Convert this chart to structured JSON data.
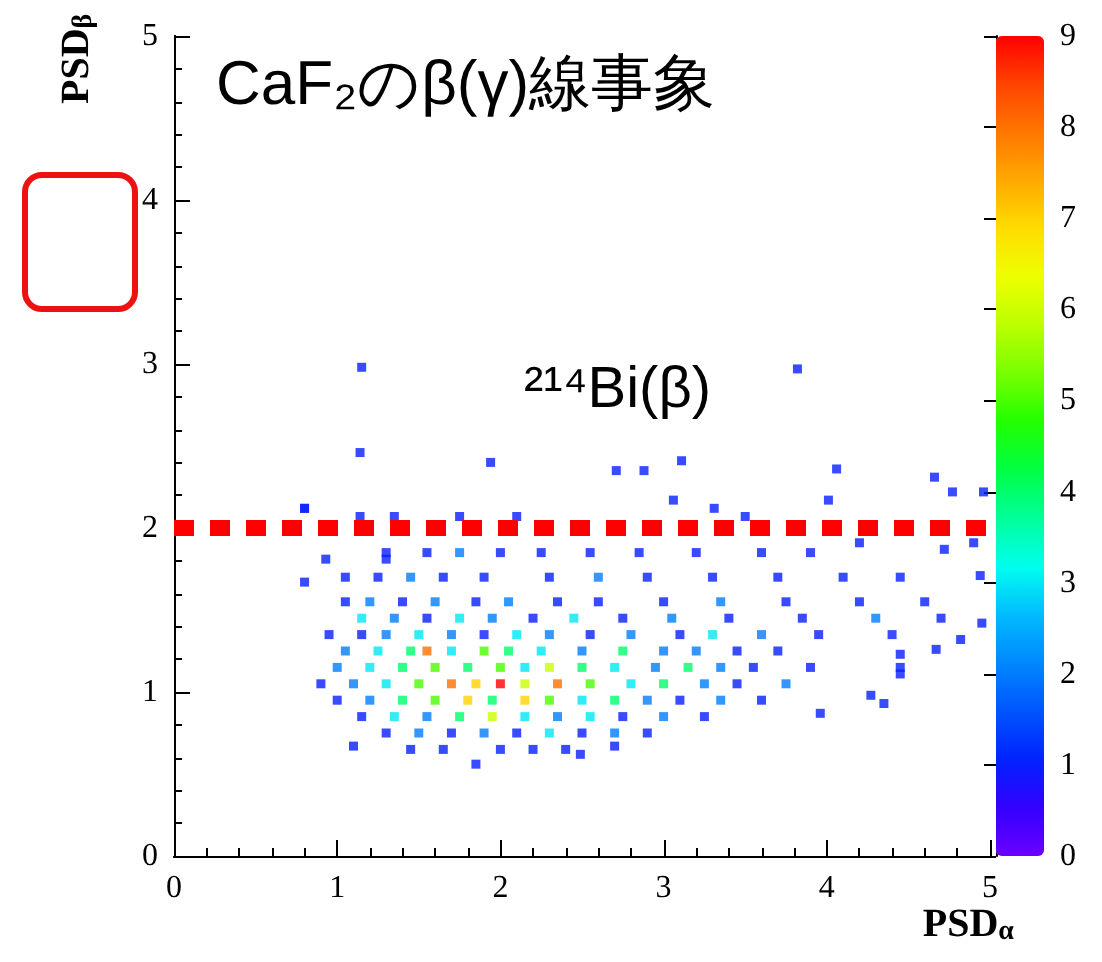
{
  "chart_data": {
    "type": "scatter",
    "title": "CaF₂のβ(γ)線事象",
    "xlabel": "PSD$_{α}$",
    "ylabel": "PSD$_{β}$",
    "annotations": [
      "²¹⁴Bi(β)"
    ],
    "marker": "square",
    "grid": false,
    "xlim": [
      0,
      5
    ],
    "xticks": [
      0,
      1,
      2,
      3,
      4,
      5
    ],
    "ylim": [
      0,
      5
    ],
    "yticks": [
      0,
      1,
      2,
      3,
      4,
      5
    ],
    "clim": [
      0,
      9
    ],
    "cticks": [
      0,
      1,
      2,
      3,
      4,
      5,
      6,
      7,
      8,
      9
    ],
    "ref_lines": [
      {
        "axis": "y",
        "value": 2,
        "label": null,
        "color": "#ff0000",
        "line_style": "dashed"
      }
    ],
    "x": [
      1.15,
      0.8,
      1.14,
      1.94,
      2.88,
      3.82,
      4.66,
      2.71,
      3.11,
      4.06,
      4.77,
      4.96,
      0.8,
      3.06,
      3.31,
      4.01,
      1.14,
      1.35,
      1.75,
      2.1,
      3.5,
      0.93,
      1.3,
      0.8,
      4.94,
      4.9,
      4.2,
      4.72,
      4.82,
      4.95,
      4.67,
      4.35,
      4.27,
      3.96,
      4.45,
      4.45,
      1.85,
      1.1,
      2.49,
      2.7,
      1.3,
      1.55,
      1.75,
      2.0,
      2.25,
      2.55,
      2.85,
      3.2,
      3.6,
      3.9,
      1.05,
      1.25,
      1.45,
      1.65,
      1.9,
      2.3,
      2.6,
      2.9,
      3.3,
      3.7,
      4.1,
      4.45,
      1.05,
      1.2,
      1.4,
      1.6,
      1.85,
      2.05,
      2.35,
      2.6,
      3.0,
      3.35,
      3.75,
      4.2,
      4.6,
      1.15,
      1.35,
      1.55,
      1.75,
      1.95,
      2.2,
      2.45,
      2.75,
      3.05,
      3.4,
      3.85,
      4.3,
      4.7,
      0.95,
      1.15,
      1.3,
      1.5,
      1.7,
      1.9,
      2.1,
      2.3,
      2.55,
      2.8,
      3.1,
      3.3,
      3.6,
      3.95,
      4.4,
      1.05,
      1.25,
      1.45,
      1.55,
      1.7,
      1.9,
      2.05,
      2.25,
      2.5,
      2.75,
      3.0,
      3.2,
      3.45,
      3.7,
      1.0,
      1.2,
      1.4,
      1.6,
      1.8,
      2.0,
      2.15,
      2.3,
      2.5,
      2.7,
      2.95,
      3.15,
      3.35,
      3.55,
      3.9,
      4.45,
      0.9,
      1.1,
      1.3,
      1.5,
      1.7,
      1.85,
      2.0,
      2.15,
      2.35,
      2.55,
      2.8,
      3.0,
      3.25,
      3.45,
      3.75,
      1.0,
      1.2,
      1.4,
      1.6,
      1.8,
      1.95,
      2.15,
      2.3,
      2.5,
      2.7,
      2.9,
      3.1,
      3.35,
      3.6,
      1.15,
      1.35,
      1.55,
      1.75,
      1.95,
      2.15,
      2.35,
      2.55,
      2.75,
      3.0,
      3.25,
      1.3,
      1.5,
      1.7,
      1.9,
      2.1,
      2.3,
      2.5,
      2.7,
      2.9,
      1.45,
      1.65,
      2.0,
      2.2,
      2.4
    ],
    "values": [
      2.98,
      2.12,
      2.46,
      2.4,
      2.35,
      2.97,
      2.31,
      2.35,
      2.41,
      2.36,
      2.22,
      2.22,
      2.12,
      2.17,
      2.12,
      2.17,
      2.07,
      2.07,
      2.07,
      2.07,
      2.07,
      1.81,
      1.81,
      1.67,
      1.71,
      1.91,
      1.91,
      1.87,
      1.32,
      1.42,
      1.26,
      0.93,
      0.98,
      0.87,
      1.11,
      1.23,
      0.56,
      0.67,
      0.62,
      0.67,
      1.85,
      1.85,
      1.85,
      1.85,
      1.85,
      1.85,
      1.85,
      1.85,
      1.85,
      1.85,
      1.7,
      1.7,
      1.7,
      1.7,
      1.7,
      1.7,
      1.7,
      1.7,
      1.7,
      1.7,
      1.7,
      1.7,
      1.55,
      1.55,
      1.55,
      1.55,
      1.55,
      1.55,
      1.55,
      1.55,
      1.55,
      1.55,
      1.55,
      1.55,
      1.55,
      1.45,
      1.45,
      1.45,
      1.45,
      1.45,
      1.45,
      1.45,
      1.45,
      1.45,
      1.45,
      1.45,
      1.45,
      1.45,
      1.35,
      1.35,
      1.35,
      1.35,
      1.35,
      1.35,
      1.35,
      1.35,
      1.35,
      1.35,
      1.35,
      1.35,
      1.35,
      1.35,
      1.35,
      1.25,
      1.25,
      1.25,
      1.25,
      1.25,
      1.25,
      1.25,
      1.25,
      1.25,
      1.25,
      1.25,
      1.25,
      1.25,
      1.25,
      1.15,
      1.15,
      1.15,
      1.15,
      1.15,
      1.15,
      1.15,
      1.15,
      1.15,
      1.15,
      1.15,
      1.15,
      1.15,
      1.15,
      1.15,
      1.15,
      1.05,
      1.05,
      1.05,
      1.05,
      1.05,
      1.05,
      1.05,
      1.05,
      1.05,
      1.05,
      1.05,
      1.05,
      1.05,
      1.05,
      1.05,
      0.95,
      0.95,
      0.95,
      0.95,
      0.95,
      0.95,
      0.95,
      0.95,
      0.95,
      0.95,
      0.95,
      0.95,
      0.95,
      0.95,
      0.85,
      0.85,
      0.85,
      0.85,
      0.85,
      0.85,
      0.85,
      0.85,
      0.85,
      0.85,
      0.85,
      0.75,
      0.75,
      0.75,
      0.75,
      0.75,
      0.75,
      0.75,
      0.75,
      0.75,
      0.65,
      0.65,
      0.65,
      0.65,
      0.65
    ],
    "cvalues": [
      1,
      1,
      1,
      1,
      1,
      1,
      1,
      1,
      1,
      1,
      1,
      1,
      1,
      1,
      1,
      1,
      1,
      1,
      1,
      1,
      1,
      1,
      1,
      1,
      1,
      1,
      1,
      1,
      1,
      1,
      1,
      1,
      1,
      1,
      1,
      1,
      1,
      1,
      1,
      1,
      1,
      1,
      2,
      1,
      1,
      1,
      1,
      1,
      1,
      1,
      1,
      1,
      2,
      1,
      1,
      1,
      2,
      1,
      1,
      1,
      1,
      1,
      1,
      2,
      1,
      2,
      1,
      2,
      1,
      1,
      1,
      2,
      1,
      1,
      1,
      3,
      2,
      1,
      3,
      2,
      1,
      3,
      1,
      2,
      1,
      1,
      2,
      1,
      1,
      1,
      2,
      3,
      2,
      1,
      3,
      2,
      1,
      2,
      1,
      3,
      2,
      1,
      1,
      2,
      3,
      4,
      8,
      3,
      5,
      4,
      3,
      2,
      4,
      2,
      2,
      1,
      1,
      2,
      3,
      4,
      5,
      4,
      5,
      3,
      6,
      4,
      3,
      2,
      4,
      2,
      1,
      1,
      1,
      1,
      2,
      3,
      5,
      8,
      7,
      9,
      6,
      8,
      5,
      3,
      4,
      2,
      1,
      2,
      1,
      2,
      4,
      5,
      7,
      4,
      7,
      5,
      3,
      4,
      2,
      1,
      2,
      1,
      1,
      3,
      2,
      4,
      6,
      3,
      2,
      3,
      1,
      2,
      1,
      1,
      2,
      1,
      2,
      1,
      3,
      1,
      2,
      1,
      1,
      1,
      1,
      1,
      1
    ]
  }
}
